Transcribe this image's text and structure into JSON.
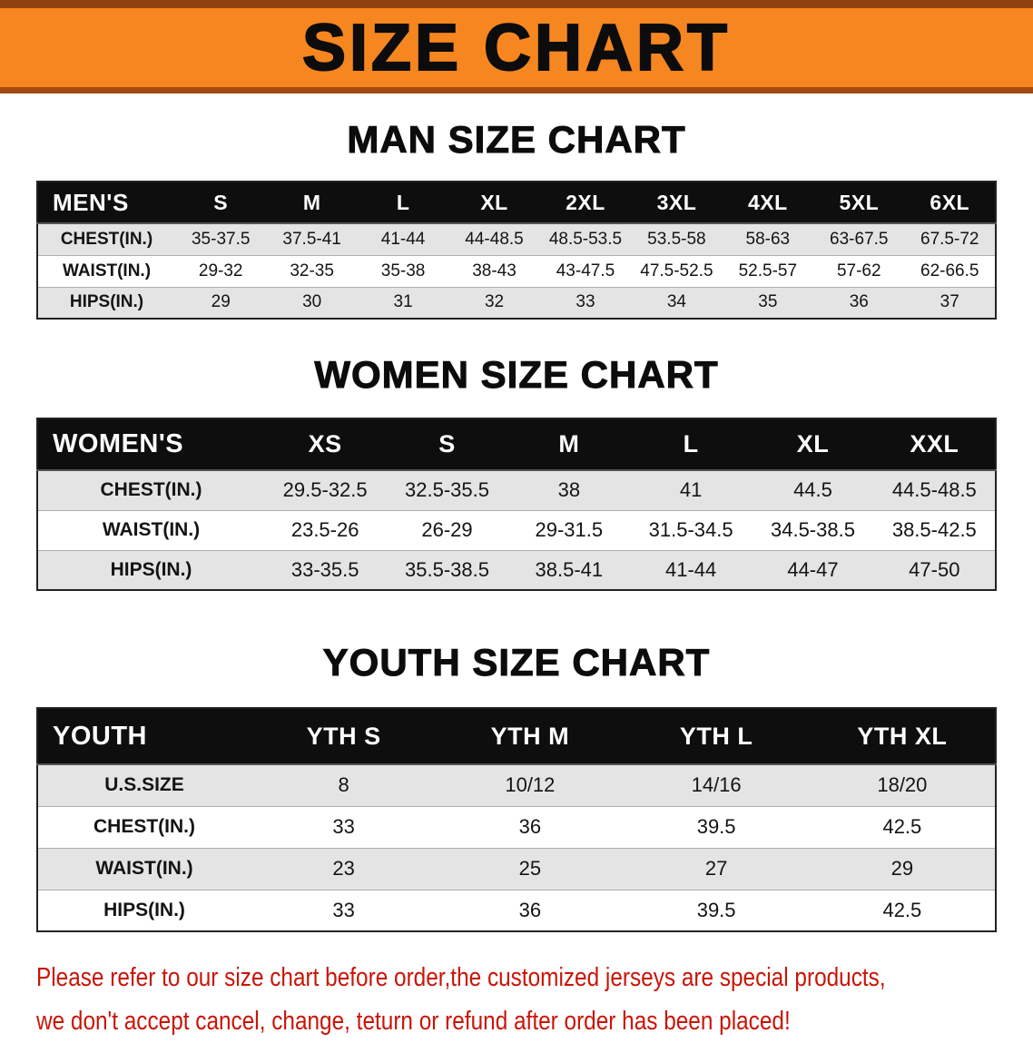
{
  "banner": {
    "title": "SIZE CHART",
    "bg_color": "#F6861F",
    "edge_color": "#8F4110"
  },
  "men": {
    "heading": "MAN SIZE CHART",
    "label": "MEN'S",
    "columns": [
      "S",
      "M",
      "L",
      "XL",
      "2XL",
      "3XL",
      "4XL",
      "5XL",
      "6XL"
    ],
    "rows": [
      {
        "label": "CHEST(IN.)",
        "values": [
          "35-37.5",
          "37.5-41",
          "41-44",
          "44-48.5",
          "48.5-53.5",
          "53.5-58",
          "58-63",
          "63-67.5",
          "67.5-72"
        ]
      },
      {
        "label": "WAIST(IN.)",
        "values": [
          "29-32",
          "32-35",
          "35-38",
          "38-43",
          "43-47.5",
          "47.5-52.5",
          "52.5-57",
          "57-62",
          "62-66.5"
        ]
      },
      {
        "label": "HIPS(IN.)",
        "values": [
          "29",
          "30",
          "31",
          "32",
          "33",
          "34",
          "35",
          "36",
          "37"
        ]
      }
    ]
  },
  "women": {
    "heading": "WOMEN SIZE CHART",
    "label": "WOMEN'S",
    "columns": [
      "XS",
      "S",
      "M",
      "L",
      "XL",
      "XXL"
    ],
    "rows": [
      {
        "label": "CHEST(IN.)",
        "values": [
          "29.5-32.5",
          "32.5-35.5",
          "38",
          "41",
          "44.5",
          "44.5-48.5"
        ]
      },
      {
        "label": "WAIST(IN.)",
        "values": [
          "23.5-26",
          "26-29",
          "29-31.5",
          "31.5-34.5",
          "34.5-38.5",
          "38.5-42.5"
        ]
      },
      {
        "label": "HIPS(IN.)",
        "values": [
          "33-35.5",
          "35.5-38.5",
          "38.5-41",
          "41-44",
          "44-47",
          "47-50"
        ]
      }
    ]
  },
  "youth": {
    "heading": "YOUTH SIZE CHART",
    "label": "YOUTH",
    "columns": [
      "YTH S",
      "YTH M",
      "YTH L",
      "YTH XL"
    ],
    "rows": [
      {
        "label": "U.S.SIZE",
        "values": [
          "8",
          "10/12",
          "14/16",
          "18/20"
        ]
      },
      {
        "label": "CHEST(IN.)",
        "values": [
          "33",
          "36",
          "39.5",
          "42.5"
        ]
      },
      {
        "label": "WAIST(IN.)",
        "values": [
          "23",
          "25",
          "27",
          "29"
        ]
      },
      {
        "label": "HIPS(IN.)",
        "values": [
          "33",
          "36",
          "39.5",
          "42.5"
        ]
      }
    ]
  },
  "footer": {
    "line1": "Please refer to our size chart before order,the customized jerseys are special products,",
    "line2": "we don't accept cancel, change, teturn or refund after order has been placed!",
    "text_color": "#C91507"
  }
}
